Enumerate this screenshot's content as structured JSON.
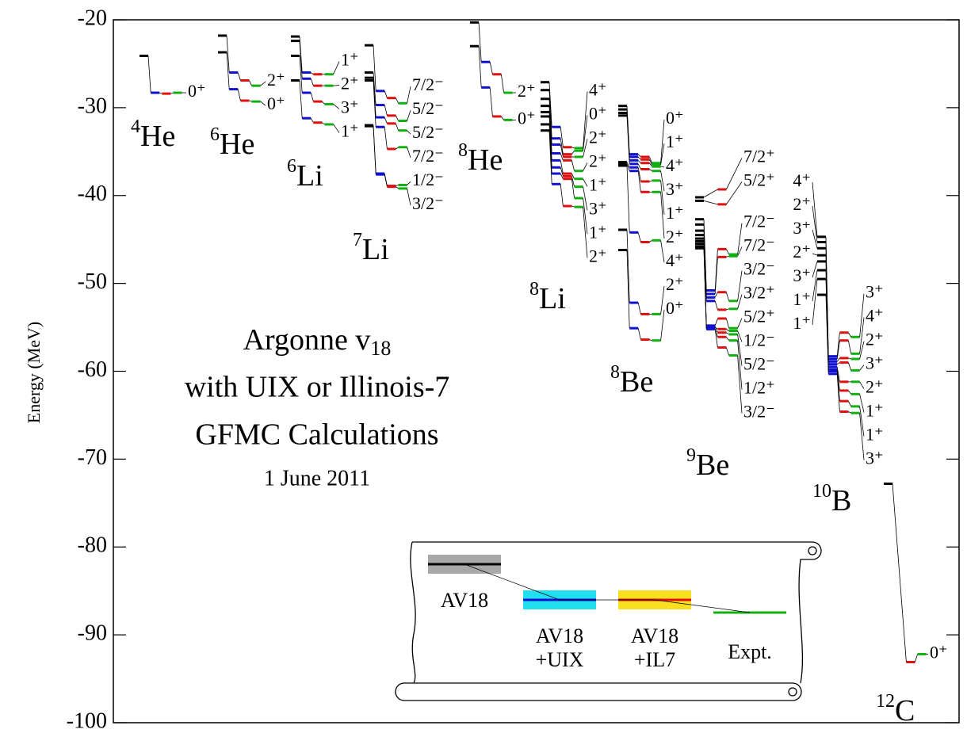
{
  "chart_data": {
    "type": "levels",
    "ylabel": "Energy (MeV)",
    "ylim": [
      -20,
      -100
    ],
    "yticks": [
      -20,
      -30,
      -40,
      -50,
      -60,
      -70,
      -80,
      -90,
      -100
    ],
    "annotation": {
      "line1": "Argonne v",
      "line1_sub": "18",
      "line2": "with UIX or Illinois-7",
      "line3": "GFMC Calculations",
      "date": "1 June 2011"
    },
    "series": [
      {
        "label_lines": [
          "AV18"
        ],
        "color": "#000000",
        "band": "#a8a8a8",
        "text_color": "#000000"
      },
      {
        "label_lines": [
          "AV18",
          "+UIX"
        ],
        "color": "#1010d0",
        "band": "#20e0f0",
        "text_color": "#1010d0"
      },
      {
        "label_lines": [
          "AV18",
          "+IL7"
        ],
        "color": "#e01010",
        "band": "#f8e020",
        "text_color": "#e01010"
      },
      {
        "label_lines": [
          "Expt."
        ],
        "color": "#10b010",
        "text_color": "#10b010"
      }
    ],
    "nuclei": [
      {
        "mass": "4",
        "element": "He",
        "levels": [
          {
            "jp": "0⁺",
            "energies": [
              -24.1,
              -28.3,
              -28.4,
              -28.3
            ]
          }
        ]
      },
      {
        "mass": "6",
        "element": "He",
        "levels": [
          {
            "jp": "2⁺",
            "energies": [
              -21.8,
              -26.0,
              -26.9,
              -27.5
            ]
          },
          {
            "jp": "0⁺",
            "energies": [
              -23.7,
              -27.9,
              -29.2,
              -29.3
            ]
          }
        ]
      },
      {
        "mass": "6",
        "element": "Li",
        "levels": [
          {
            "jp": "1⁺",
            "energies": [
              -21.9,
              -26.0,
              -26.2,
              -26.2
            ]
          },
          {
            "jp": "2⁺",
            "energies": [
              -22.4,
              -26.7,
              -27.5,
              -27.5
            ]
          },
          {
            "jp": "3⁺",
            "energies": [
              -24.1,
              -28.3,
              -29.3,
              -29.6
            ]
          },
          {
            "jp": "1⁺",
            "energies": [
              -26.9,
              -31.2,
              -31.7,
              -31.9
            ]
          }
        ]
      },
      {
        "mass": "7",
        "element": "Li",
        "levels": [
          {
            "jp": "7/2⁻",
            "energies": [
              -22.9,
              -28.1,
              -28.9,
              -29.5
            ]
          },
          {
            "jp": "5/2⁻",
            "energies": [
              -26.0,
              -29.7,
              -30.9,
              -31.5
            ]
          },
          {
            "jp": "5/2⁻",
            "energies": [
              -26.6,
              -31.1,
              -31.8,
              -32.6
            ]
          },
          {
            "jp": "7/2⁻",
            "energies": [
              -26.9,
              -32.2,
              -34.7,
              -34.5
            ]
          },
          {
            "jp": "1/2⁻",
            "energies": [
              -32.0,
              -37.5,
              -38.9,
              -38.8
            ]
          },
          {
            "jp": "3/2⁻",
            "energies": [
              -32.1,
              -37.6,
              -39.0,
              -39.2
            ]
          }
        ]
      },
      {
        "mass": "8",
        "element": "He",
        "levels": [
          {
            "jp": "2⁺",
            "energies": [
              -20.3,
              -24.8,
              -26.2,
              -28.3
            ]
          },
          {
            "jp": "0⁺",
            "energies": [
              -23.0,
              -27.7,
              -31.0,
              -31.4
            ]
          }
        ]
      },
      {
        "mass": "8",
        "element": "Li",
        "levels": [
          {
            "jp": "4⁺",
            "energies": [
              -27.1,
              -32.2,
              -34.5,
              -34.6
            ]
          },
          {
            "jp": "0⁺",
            "energies": [
              -28.0,
              -33.5,
              -35.3,
              -34.9
            ]
          },
          {
            "jp": "2⁺",
            "energies": [
              -29.0,
              -34.2,
              -35.6,
              -35.6
            ]
          },
          {
            "jp": "2⁺",
            "energies": [
              -29.8,
              -35.2,
              -36.0,
              -37.2
            ]
          },
          {
            "jp": "1⁺",
            "energies": [
              -30.5,
              -36.0,
              -37.5,
              -38.1
            ]
          },
          {
            "jp": "3⁺",
            "energies": [
              -31.0,
              -36.8,
              -37.8,
              -39.0
            ]
          },
          {
            "jp": "1⁺",
            "energies": [
              -31.9,
              -37.5,
              -38.1,
              -40.3
            ]
          },
          {
            "jp": "2⁺",
            "energies": [
              -32.6,
              -38.7,
              -41.2,
              -41.3
            ]
          }
        ]
      },
      {
        "mass": "8",
        "element": "Be",
        "levels": [
          {
            "jp": "0⁺",
            "energies": [
              -29.8,
              -35.3,
              -35.6,
              -36.3
            ]
          },
          {
            "jp": "1⁺",
            "energies": [
              -30.2,
              -35.6,
              -35.9,
              -36.5
            ]
          },
          {
            "jp": "4⁺",
            "energies": [
              -30.6,
              -36.0,
              -36.3,
              -36.7
            ]
          },
          {
            "jp": "3⁺",
            "energies": [
              -30.9,
              -36.4,
              -37.0,
              -37.2
            ]
          },
          {
            "jp": "1⁺",
            "energies": [
              -36.2,
              -36.8,
              -38.4,
              -38.3
            ]
          },
          {
            "jp": "2⁺",
            "energies": [
              -36.4,
              -37.2,
              -39.6,
              -39.6
            ]
          },
          {
            "jp": "4⁺",
            "energies": [
              -36.6,
              -44.2,
              -45.3,
              -45.1
            ]
          },
          {
            "jp": "2⁺",
            "energies": [
              -43.9,
              -52.2,
              -53.5,
              -53.5
            ]
          },
          {
            "jp": "0⁺",
            "energies": [
              -46.2,
              -55.1,
              -56.4,
              -56.5
            ]
          }
        ]
      },
      {
        "mass": "9",
        "element": "Be",
        "levels": [
          {
            "jp": "7/2⁺",
            "energies": [
              -40.2,
              null,
              -39.3,
              null
            ]
          },
          {
            "jp": "5/2⁺",
            "energies": [
              -40.6,
              null,
              -41.0,
              null
            ]
          },
          {
            "jp": "7/2⁻",
            "energies": [
              -42.7,
              -50.8,
              -46.1,
              -46.7
            ]
          },
          {
            "jp": "7/2⁻",
            "energies": [
              -43.3,
              -51.2,
              -47.0,
              -46.9
            ]
          },
          {
            "jp": "3/2⁻",
            "energies": [
              -44.0,
              -51.6,
              -51.0,
              -52.0
            ]
          },
          {
            "jp": "3/2⁺",
            "energies": [
              -44.5,
              -52.0,
              -53.0,
              -52.9
            ]
          },
          {
            "jp": "5/2⁺",
            "energies": [
              -44.9,
              -54.8,
              -54.0,
              -55.1
            ]
          },
          {
            "jp": "1/2⁻",
            "energies": [
              -45.2,
              -55.0,
              -55.2,
              -55.4
            ]
          },
          {
            "jp": "5/2⁻",
            "energies": [
              -45.5,
              -54.9,
              -55.6,
              -55.8
            ]
          },
          {
            "jp": "1/2⁺",
            "energies": [
              -45.8,
              -55.2,
              -56.1,
              -56.5
            ]
          },
          {
            "jp": "3/2⁻",
            "energies": [
              -46.0,
              -55.2,
              -57.3,
              -58.2
            ]
          }
        ]
      },
      {
        "mass": "10",
        "element": "B",
        "left_labels": [
          "4⁺",
          "2⁺",
          "3⁺",
          "2⁺",
          "3⁺",
          "1⁺",
          "1⁺"
        ],
        "levels": [
          {
            "jp": "3⁺",
            "energies": [
              -44.7,
              -58.3,
              -55.6,
              -56.1
            ]
          },
          {
            "jp": "4⁺",
            "energies": [
              -45.3,
              -58.6,
              -56.5,
              -58.0
            ]
          },
          {
            "jp": "2⁺",
            "energies": [
              -46.0,
              -58.9,
              -58.5,
              -58.6
            ]
          },
          {
            "jp": "3⁺",
            "energies": [
              -46.8,
              -59.2,
              -59.0,
              -59.9
            ]
          },
          {
            "jp": "2⁺",
            "energies": [
              -47.5,
              -59.5,
              -61.2,
              -61.2
            ]
          },
          {
            "jp": "1⁺",
            "energies": [
              -48.5,
              -59.8,
              -62.2,
              -62.6
            ]
          },
          {
            "jp": "1⁺",
            "energies": [
              -49.5,
              -60.0,
              -63.4,
              -64.0
            ]
          },
          {
            "jp": "3⁺",
            "energies": [
              -51.3,
              -60.3,
              -64.6,
              -64.75
            ]
          }
        ]
      },
      {
        "mass": "12",
        "element": "C",
        "levels": [
          {
            "jp": "0⁺",
            "energies": [
              -72.8,
              null,
              -93.1,
              -92.2
            ]
          }
        ]
      }
    ]
  }
}
